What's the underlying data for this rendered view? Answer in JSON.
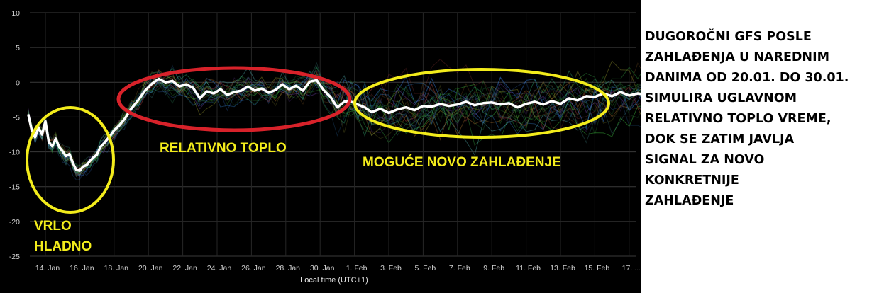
{
  "chart_data": {
    "type": "line",
    "xlabel": "Local time (UTC+1)",
    "ylabel": "",
    "ylim": [
      -25,
      10
    ],
    "yticks": [
      10,
      5,
      0,
      -5,
      -10,
      -15,
      -20,
      -25
    ],
    "xticks": [
      "14. Jan",
      "16. Jan",
      "18. Jan",
      "20. Jan",
      "22. Jan",
      "24. Jan",
      "26. Jan",
      "28. Jan",
      "30. Jan",
      "1. Feb",
      "3. Feb",
      "5. Feb",
      "7. Feb",
      "9. Feb",
      "11. Feb",
      "13. Feb",
      "15. Feb",
      "17. ..."
    ],
    "grid": true,
    "series": [
      {
        "color": "#ffffff",
        "x": [
          13.0,
          13.2,
          13.4,
          13.6,
          13.8,
          14.0,
          14.2,
          14.4,
          14.6,
          14.8,
          15.0,
          15.2,
          15.4,
          15.6,
          15.8,
          16.0,
          16.2,
          16.4,
          16.6,
          16.8,
          17.0,
          17.2,
          17.4,
          17.6,
          17.8,
          18.0,
          18.3,
          18.6,
          19.0,
          19.4,
          19.8,
          20.2,
          20.6,
          21.0,
          21.4,
          21.8,
          22.2,
          22.6,
          23.0,
          23.4,
          23.8,
          24.2,
          24.6,
          25.0,
          25.4,
          25.8,
          26.2,
          26.6,
          27.0,
          27.4,
          27.8,
          28.2,
          28.6,
          29.0,
          29.4,
          29.8,
          30.2,
          30.6,
          31.0,
          31.4,
          31.8,
          32.2,
          32.6,
          33.0,
          33.5,
          34.0,
          34.5,
          35.0,
          35.5,
          36.0,
          36.5,
          37.0,
          37.5,
          38.0,
          38.5,
          39.0,
          39.5,
          40.0,
          40.5,
          41.0,
          41.5,
          42.0,
          42.5,
          43.0,
          43.5,
          44.0,
          44.5,
          45.0,
          45.5,
          46.0,
          46.5,
          47.0,
          47.5,
          48.0,
          48.5,
          49.0
        ],
        "values": [
          -4.6,
          -6.8,
          -7.9,
          -6.5,
          -7.5,
          -5.6,
          -8.6,
          -9.2,
          -8.1,
          -9.3,
          -9.9,
          -10.6,
          -10.3,
          -11.6,
          -12.6,
          -12.7,
          -12.1,
          -11.9,
          -11.3,
          -10.8,
          -10.4,
          -9.3,
          -8.8,
          -8.2,
          -7.6,
          -6.9,
          -6.2,
          -5.3,
          -3.8,
          -2.6,
          -1.2,
          -0.2,
          0.5,
          0.0,
          0.2,
          -0.6,
          -0.3,
          -0.8,
          -2.3,
          -1.3,
          -1.6,
          -1.0,
          -1.8,
          -1.4,
          -1.2,
          -0.6,
          -1.2,
          -0.9,
          -1.5,
          -1.1,
          -0.3,
          -1.0,
          -0.5,
          -1.2,
          0.1,
          0.3,
          -1.1,
          -2.1,
          -3.6,
          -2.8,
          -2.8,
          -3.2,
          -3.6,
          -4.3,
          -3.8,
          -4.4,
          -3.9,
          -3.6,
          -4.0,
          -3.4,
          -3.5,
          -3.1,
          -3.4,
          -3.2,
          -2.8,
          -3.3,
          -3.0,
          -2.9,
          -3.2,
          -3.0,
          -3.6,
          -3.1,
          -2.8,
          -3.2,
          -2.7,
          -3.1,
          -2.3,
          -2.6,
          -2.0,
          -2.1,
          -1.6,
          -2.0,
          -1.4,
          -1.9,
          -1.6,
          -1.8
        ]
      }
    ]
  },
  "annotations": {
    "vrlo_line1": "VRLO",
    "vrlo_line2": "HLADNO",
    "relativno_toplo": "RELATIVNO TOPLO",
    "moguce": "MOGUĆE NOVO ZAHLAĐENJE"
  },
  "side_text": [
    "DUGOROČNI GFS POSLE",
    "ZAHLAĐENJA U NAREDNIM",
    "DANIMA OD 20.01. DO 30.01.",
    "SIMULIRA UGLAVNOM",
    "RELATIVNO TOPLO VREME,",
    "DOK SE ZATIM JAVLJA",
    "SIGNAL ZA NOVO",
    "KONKRETNIJE",
    "ZAHLAĐENJE"
  ],
  "colors": {
    "background": "#000000",
    "main_line": "#ffffff",
    "highlight_yellow": "#f3ec1b",
    "highlight_red": "#d8222a",
    "ensemble_green": "#3fbf3f"
  }
}
